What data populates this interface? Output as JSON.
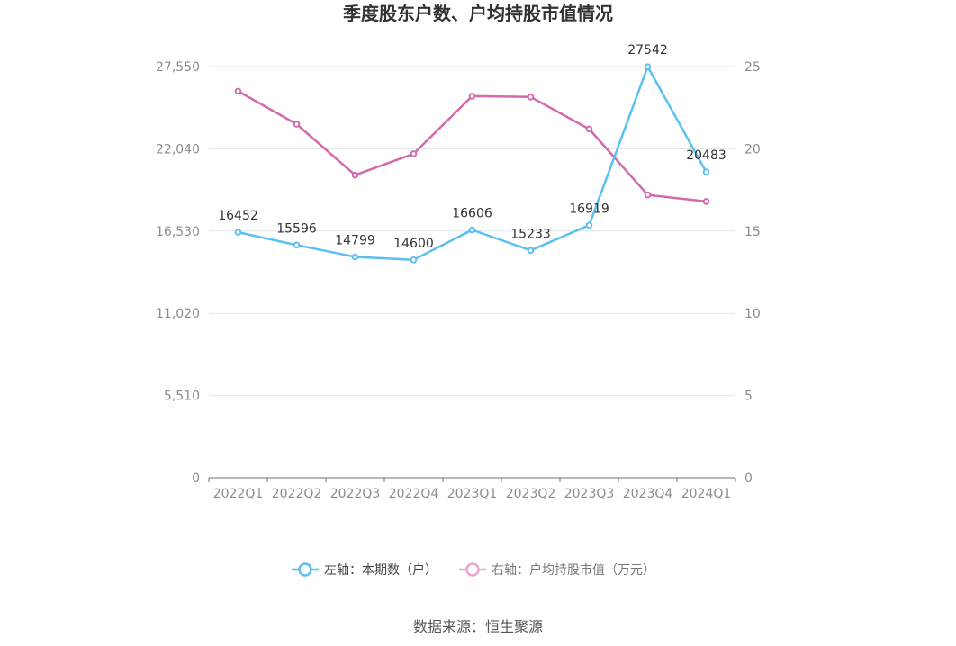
{
  "chart_data": {
    "type": "line",
    "title": "季度股东户数、户均持股市值情况",
    "categories": [
      "2022Q1",
      "2022Q2",
      "2022Q3",
      "2022Q4",
      "2023Q1",
      "2023Q2",
      "2023Q3",
      "2023Q4",
      "2024Q1"
    ],
    "left_axis": {
      "ticks": [
        "0",
        "5,510",
        "11,020",
        "16,530",
        "22,040",
        "27,550"
      ],
      "ylim": [
        0,
        27550
      ]
    },
    "right_axis": {
      "ticks": [
        "0",
        "5",
        "10",
        "15",
        "20",
        "25"
      ],
      "ylim": [
        0,
        25
      ]
    },
    "grid": true,
    "legend_position": "bottom",
    "series": [
      {
        "name": "左轴：本期数（户）",
        "axis": "left",
        "color": "#5bc0f0",
        "values": [
          16452,
          15596,
          14799,
          14600,
          16606,
          15233,
          16919,
          27542,
          20483
        ],
        "labels": [
          "16452",
          "15596",
          "14799",
          "14600",
          "16606",
          "15233",
          "16919",
          "27542",
          "20483"
        ]
      },
      {
        "name": "右轴：户均持股市值（万元）",
        "axis": "right",
        "color": "#d36aaa",
        "values": [
          23.5,
          21.5,
          18.4,
          19.7,
          23.2,
          23.15,
          21.2,
          17.2,
          16.8
        ]
      }
    ]
  },
  "source_text": "数据来源：恒生聚源"
}
